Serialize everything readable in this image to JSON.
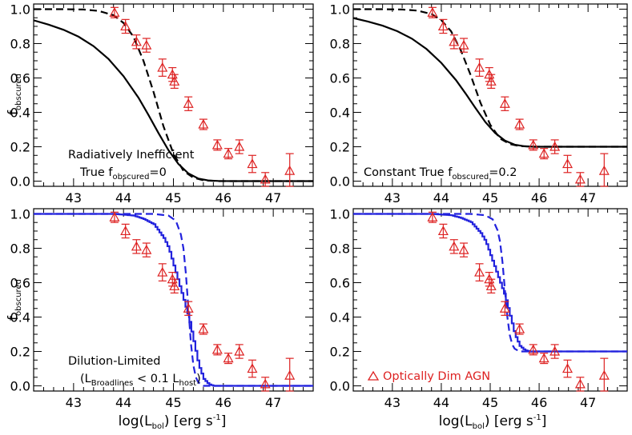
{
  "figure": {
    "ylabel": {
      "main": "f",
      "sub": "obscured"
    },
    "xlabel": {
      "pre": "log(L",
      "sub": "bol",
      "post": ")  [erg s",
      "sup": "-1",
      "close": "]"
    },
    "legend_label": "Optically Dim AGN",
    "colors": {
      "model_black": "#000000",
      "model_blue": "#2222dd",
      "data_red": "#dd2222"
    }
  },
  "chart_data": [
    {
      "type": "line",
      "panel": "top-left",
      "annotation": {
        "line1": "Radiatively Inefficient",
        "line2_pre": "True f",
        "line2_sub": "obscured",
        "line2_post": "=0"
      },
      "xlim": [
        42.2,
        47.8
      ],
      "ylim": [
        -0.03,
        1.03
      ],
      "xticks": [
        "43",
        "44",
        "45",
        "46",
        "47"
      ],
      "yticks": [
        "0.0",
        "0.2",
        "0.4",
        "0.6",
        "0.8",
        "1.0"
      ],
      "series": [
        {
          "style": "solid",
          "color": "black",
          "x": [
            42.2,
            42.5,
            42.8,
            43.1,
            43.4,
            43.7,
            44.0,
            44.3,
            44.5,
            44.7,
            44.9,
            45.1,
            45.3,
            45.5,
            45.7,
            45.9,
            46.2,
            46.6,
            47.0,
            47.8
          ],
          "y": [
            0.935,
            0.91,
            0.88,
            0.84,
            0.785,
            0.71,
            0.61,
            0.485,
            0.385,
            0.28,
            0.18,
            0.1,
            0.045,
            0.015,
            0.004,
            0.001,
            0.0,
            0.0,
            0.0,
            0.0
          ]
        },
        {
          "style": "dashed",
          "color": "black",
          "x": [
            42.2,
            42.8,
            43.2,
            43.5,
            43.8,
            44.0,
            44.2,
            44.4,
            44.6,
            44.8,
            45.0,
            45.2,
            45.4,
            45.6,
            45.9,
            46.3,
            47.8
          ],
          "y": [
            1.0,
            1.0,
            0.998,
            0.99,
            0.965,
            0.92,
            0.84,
            0.7,
            0.52,
            0.32,
            0.16,
            0.06,
            0.02,
            0.005,
            0.0,
            0.0,
            0.0
          ]
        }
      ],
      "data_points": [
        {
          "x": 43.82,
          "y": 0.98,
          "err": 0.03
        },
        {
          "x": 44.04,
          "y": 0.9,
          "err": 0.04
        },
        {
          "x": 44.26,
          "y": 0.81,
          "err": 0.04
        },
        {
          "x": 44.46,
          "y": 0.79,
          "err": 0.04
        },
        {
          "x": 44.78,
          "y": 0.66,
          "err": 0.05
        },
        {
          "x": 44.98,
          "y": 0.62,
          "err": 0.04
        },
        {
          "x": 45.02,
          "y": 0.58,
          "err": 0.04
        },
        {
          "x": 45.3,
          "y": 0.45,
          "err": 0.04
        },
        {
          "x": 45.6,
          "y": 0.33,
          "err": 0.03
        },
        {
          "x": 45.88,
          "y": 0.21,
          "err": 0.03
        },
        {
          "x": 46.1,
          "y": 0.16,
          "err": 0.03
        },
        {
          "x": 46.32,
          "y": 0.2,
          "err": 0.04
        },
        {
          "x": 46.58,
          "y": 0.1,
          "err": 0.05
        },
        {
          "x": 46.84,
          "y": 0.01,
          "err": 0.04
        },
        {
          "x": 47.33,
          "y": 0.06,
          "err": 0.1
        }
      ]
    },
    {
      "type": "line",
      "panel": "top-right",
      "annotation": {
        "line1": "",
        "line2_pre": "Constant True f",
        "line2_sub": "obscured",
        "line2_post": "=0.2"
      },
      "xlim": [
        42.2,
        47.8
      ],
      "ylim": [
        -0.03,
        1.03
      ],
      "xticks": [
        "43",
        "44",
        "45",
        "46",
        "47"
      ],
      "yticks": [
        "0.0",
        "0.2",
        "0.4",
        "0.6",
        "0.8",
        "1.0"
      ],
      "series": [
        {
          "style": "solid",
          "color": "black",
          "x": [
            42.2,
            42.5,
            42.8,
            43.1,
            43.4,
            43.7,
            44.0,
            44.3,
            44.5,
            44.7,
            44.9,
            45.1,
            45.3,
            45.5,
            45.7,
            45.9,
            46.2,
            47.8
          ],
          "y": [
            0.948,
            0.928,
            0.904,
            0.872,
            0.828,
            0.768,
            0.688,
            0.588,
            0.508,
            0.424,
            0.344,
            0.28,
            0.236,
            0.212,
            0.203,
            0.2,
            0.2,
            0.2
          ]
        },
        {
          "style": "dashed",
          "color": "black",
          "x": [
            42.2,
            42.8,
            43.2,
            43.5,
            43.8,
            44.0,
            44.2,
            44.4,
            44.6,
            44.8,
            45.0,
            45.2,
            45.4,
            45.6,
            45.9,
            46.3,
            47.8
          ],
          "y": [
            1.0,
            1.0,
            0.998,
            0.992,
            0.972,
            0.936,
            0.872,
            0.76,
            0.616,
            0.456,
            0.328,
            0.248,
            0.216,
            0.204,
            0.2,
            0.2,
            0.2
          ]
        }
      ],
      "data_points": [
        {
          "x": 43.82,
          "y": 0.98,
          "err": 0.03
        },
        {
          "x": 44.04,
          "y": 0.9,
          "err": 0.04
        },
        {
          "x": 44.26,
          "y": 0.81,
          "err": 0.04
        },
        {
          "x": 44.46,
          "y": 0.79,
          "err": 0.04
        },
        {
          "x": 44.78,
          "y": 0.66,
          "err": 0.05
        },
        {
          "x": 44.98,
          "y": 0.62,
          "err": 0.04
        },
        {
          "x": 45.02,
          "y": 0.58,
          "err": 0.04
        },
        {
          "x": 45.3,
          "y": 0.45,
          "err": 0.04
        },
        {
          "x": 45.6,
          "y": 0.33,
          "err": 0.03
        },
        {
          "x": 45.88,
          "y": 0.21,
          "err": 0.03
        },
        {
          "x": 46.1,
          "y": 0.16,
          "err": 0.03
        },
        {
          "x": 46.32,
          "y": 0.2,
          "err": 0.04
        },
        {
          "x": 46.58,
          "y": 0.1,
          "err": 0.05
        },
        {
          "x": 46.84,
          "y": 0.01,
          "err": 0.04
        },
        {
          "x": 47.33,
          "y": 0.06,
          "err": 0.1
        }
      ]
    },
    {
      "type": "line",
      "panel": "bottom-left",
      "annotation": {
        "line1": "Dilution-Limited",
        "line2_pre": "(L",
        "line2_sub": "Broadlines",
        "line2_mid": " < 0.1 L",
        "line2_sub2": "host",
        "line2_post": ")"
      },
      "xlim": [
        42.2,
        47.8
      ],
      "ylim": [
        -0.03,
        1.03
      ],
      "xticks": [
        "43",
        "44",
        "45",
        "46",
        "47"
      ],
      "yticks": [
        "0.0",
        "0.2",
        "0.4",
        "0.6",
        "0.8",
        "1.0"
      ],
      "series": [
        {
          "style": "solid-step",
          "color": "blue",
          "x": [
            42.2,
            43.8,
            44.2,
            44.4,
            44.6,
            44.7,
            44.8,
            44.9,
            45.0,
            45.1,
            45.2,
            45.3,
            45.4,
            45.5,
            45.6,
            45.7,
            45.8,
            46.0,
            46.4,
            47.8
          ],
          "y": [
            1.0,
            1.0,
            0.99,
            0.97,
            0.94,
            0.9,
            0.86,
            0.8,
            0.7,
            0.6,
            0.5,
            0.4,
            0.26,
            0.12,
            0.04,
            0.01,
            0.0,
            0.0,
            0.0,
            0.0
          ]
        },
        {
          "style": "dashed",
          "color": "blue",
          "x": [
            42.2,
            44.6,
            44.9,
            45.05,
            45.15,
            45.2,
            45.25,
            45.3,
            45.35,
            45.4,
            45.45,
            45.5,
            45.6,
            46.0,
            47.8
          ],
          "y": [
            1.0,
            1.0,
            0.99,
            0.96,
            0.88,
            0.8,
            0.65,
            0.45,
            0.25,
            0.12,
            0.05,
            0.02,
            0.0,
            0.0,
            0.0
          ]
        }
      ],
      "data_points": [
        {
          "x": 43.82,
          "y": 0.98,
          "err": 0.03
        },
        {
          "x": 44.04,
          "y": 0.9,
          "err": 0.04
        },
        {
          "x": 44.26,
          "y": 0.81,
          "err": 0.04
        },
        {
          "x": 44.46,
          "y": 0.79,
          "err": 0.04
        },
        {
          "x": 44.78,
          "y": 0.66,
          "err": 0.05
        },
        {
          "x": 44.98,
          "y": 0.62,
          "err": 0.04
        },
        {
          "x": 45.02,
          "y": 0.58,
          "err": 0.04
        },
        {
          "x": 45.3,
          "y": 0.45,
          "err": 0.04
        },
        {
          "x": 45.6,
          "y": 0.33,
          "err": 0.03
        },
        {
          "x": 45.88,
          "y": 0.21,
          "err": 0.03
        },
        {
          "x": 46.1,
          "y": 0.16,
          "err": 0.03
        },
        {
          "x": 46.32,
          "y": 0.2,
          "err": 0.04
        },
        {
          "x": 46.58,
          "y": 0.1,
          "err": 0.05
        },
        {
          "x": 46.84,
          "y": 0.01,
          "err": 0.04
        },
        {
          "x": 47.33,
          "y": 0.06,
          "err": 0.1
        }
      ]
    },
    {
      "type": "line",
      "panel": "bottom-right",
      "annotation": {
        "line1": "",
        "line2_pre": "Optically Dim AGN"
      },
      "xlim": [
        42.2,
        47.8
      ],
      "ylim": [
        -0.03,
        1.03
      ],
      "xticks": [
        "43",
        "44",
        "45",
        "46",
        "47"
      ],
      "yticks": [
        "0.0",
        "0.2",
        "0.4",
        "0.6",
        "0.8",
        "1.0"
      ],
      "series": [
        {
          "style": "solid-step",
          "color": "blue",
          "x": [
            42.2,
            43.8,
            44.2,
            44.4,
            44.6,
            44.7,
            44.8,
            44.9,
            45.0,
            45.1,
            45.2,
            45.3,
            45.4,
            45.5,
            45.6,
            45.7,
            45.8,
            46.0,
            46.4,
            47.8
          ],
          "y": [
            1.0,
            1.0,
            0.992,
            0.976,
            0.952,
            0.92,
            0.888,
            0.84,
            0.76,
            0.68,
            0.6,
            0.52,
            0.408,
            0.296,
            0.232,
            0.208,
            0.2,
            0.2,
            0.2,
            0.2
          ]
        },
        {
          "style": "dashed",
          "color": "blue",
          "x": [
            42.2,
            44.6,
            44.9,
            45.05,
            45.15,
            45.2,
            45.25,
            45.3,
            45.35,
            45.4,
            45.45,
            45.5,
            45.6,
            46.0,
            47.8
          ],
          "y": [
            1.0,
            1.0,
            0.992,
            0.968,
            0.904,
            0.84,
            0.72,
            0.56,
            0.4,
            0.296,
            0.24,
            0.216,
            0.2,
            0.2,
            0.2
          ]
        }
      ],
      "data_points": [
        {
          "x": 43.82,
          "y": 0.98,
          "err": 0.03
        },
        {
          "x": 44.04,
          "y": 0.9,
          "err": 0.04
        },
        {
          "x": 44.26,
          "y": 0.81,
          "err": 0.04
        },
        {
          "x": 44.46,
          "y": 0.79,
          "err": 0.04
        },
        {
          "x": 44.78,
          "y": 0.66,
          "err": 0.05
        },
        {
          "x": 44.98,
          "y": 0.62,
          "err": 0.04
        },
        {
          "x": 45.02,
          "y": 0.58,
          "err": 0.04
        },
        {
          "x": 45.3,
          "y": 0.45,
          "err": 0.04
        },
        {
          "x": 45.6,
          "y": 0.33,
          "err": 0.03
        },
        {
          "x": 45.88,
          "y": 0.21,
          "err": 0.03
        },
        {
          "x": 46.1,
          "y": 0.16,
          "err": 0.03
        },
        {
          "x": 46.32,
          "y": 0.2,
          "err": 0.04
        },
        {
          "x": 46.58,
          "y": 0.1,
          "err": 0.05
        },
        {
          "x": 46.84,
          "y": 0.01,
          "err": 0.04
        },
        {
          "x": 47.33,
          "y": 0.06,
          "err": 0.1
        }
      ]
    }
  ]
}
